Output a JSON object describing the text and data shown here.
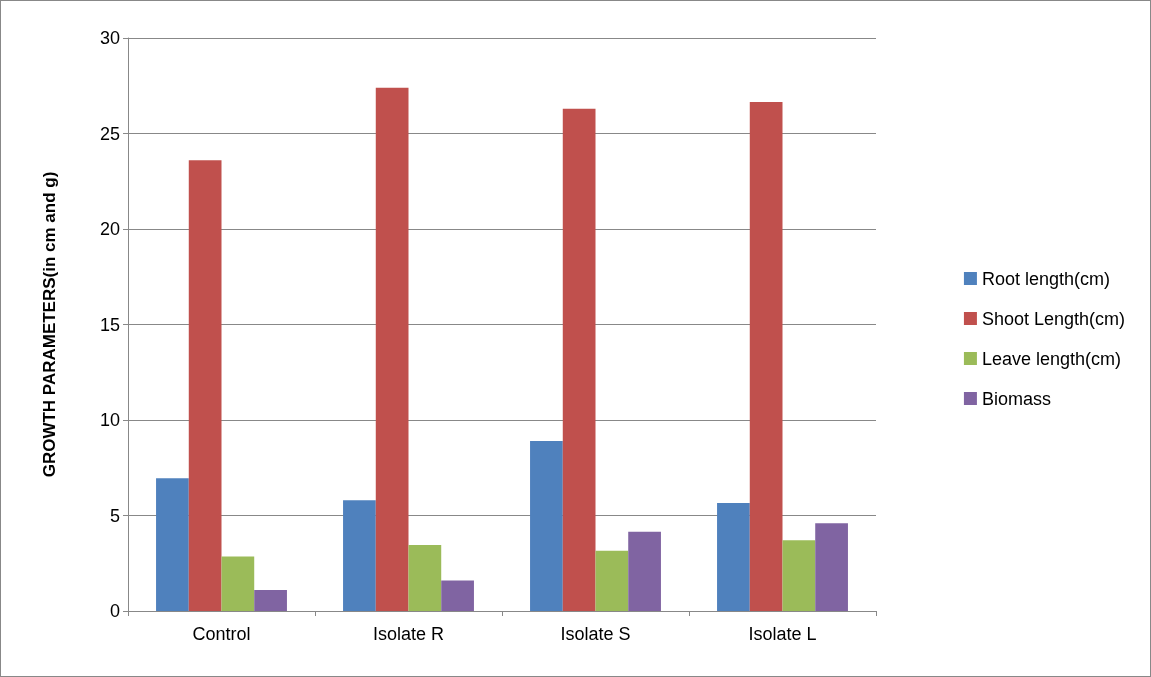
{
  "chart_data": {
    "type": "bar",
    "ylabel": "GROWTH PARAMETERS(in cm and g)",
    "categories": [
      "Control",
      "Isolate R",
      "Isolate S",
      "Isolate L"
    ],
    "series": [
      {
        "name": "Root length(cm)",
        "color": "#4f81bd",
        "values": [
          6.95,
          5.8,
          8.9,
          5.65
        ]
      },
      {
        "name": "Shoot Length(cm)",
        "color": "#c0504d",
        "values": [
          23.6,
          27.4,
          26.3,
          26.65
        ]
      },
      {
        "name": "Leave length(cm)",
        "color": "#9bbb59",
        "values": [
          2.85,
          3.45,
          3.15,
          3.7
        ]
      },
      {
        "name": "Biomass",
        "color": "#8064a2",
        "values": [
          1.1,
          1.6,
          4.15,
          4.6
        ]
      }
    ],
    "ylim": [
      0,
      30
    ],
    "yticks": [
      0,
      5,
      10,
      15,
      20,
      25,
      30
    ],
    "grid": "y",
    "legend": "right"
  }
}
